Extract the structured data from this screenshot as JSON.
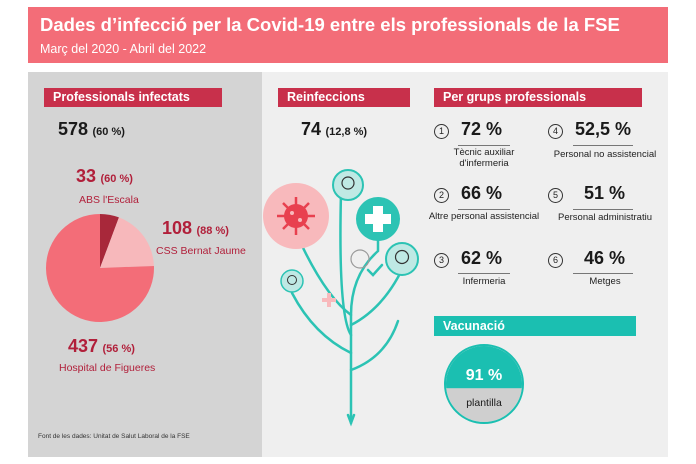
{
  "header": {
    "title": "Dades d’infecció per la Covid-19 entre els professionals de la FSE",
    "subtitle": "Març del 2020 - Abril del 2022"
  },
  "infectats": {
    "heading": "Professionals infectats",
    "total_value": "578",
    "total_pct": "(60 %)",
    "abs_value": "33",
    "abs_pct": "(60 %)",
    "abs_label": "ABS l'Escala",
    "css_value": "108",
    "css_pct": "(88 %)",
    "css_label": "CSS Bernat Jaume",
    "hosp_value": "437",
    "hosp_pct": "(56 %)",
    "hosp_label": "Hospital de Figueres"
  },
  "chart_data": {
    "type": "pie",
    "categories": [
      "ABS l'Escala",
      "CSS Bernat Jaume",
      "Hospital de Figueres"
    ],
    "values": [
      33,
      108,
      437
    ],
    "colors": [
      "#a8283a",
      "#f7b8bb",
      "#f36d78"
    ]
  },
  "reinfeccions": {
    "heading": "Reinfeccions",
    "value": "74",
    "pct": "(12,8 %)"
  },
  "grups": {
    "heading": "Per grups professionals",
    "items": [
      {
        "num": "1",
        "value": "72 %",
        "label": "Tècnic auxiliar d'infermeria"
      },
      {
        "num": "2",
        "value": "66 %",
        "label": "Altre personal assistencial"
      },
      {
        "num": "3",
        "value": "62 %",
        "label": "Infermeria"
      },
      {
        "num": "4",
        "value": "52,5 %",
        "label": "Personal no assistencial"
      },
      {
        "num": "5",
        "value": "51 %",
        "label": "Personal administratiu"
      },
      {
        "num": "6",
        "value": "46 %",
        "label": "Metges"
      }
    ]
  },
  "vacunacio": {
    "heading": "Vacunació",
    "value": "91 %",
    "label": "plantilla",
    "fraction": 0.91
  },
  "footer": {
    "source": "Font de les dades: Unitat de Salut Laboral de la FSE"
  },
  "colors": {
    "header": "#f36d78",
    "section": "#c8304b",
    "teal": "#1bbfb1",
    "dark_red": "#b11f3a"
  }
}
